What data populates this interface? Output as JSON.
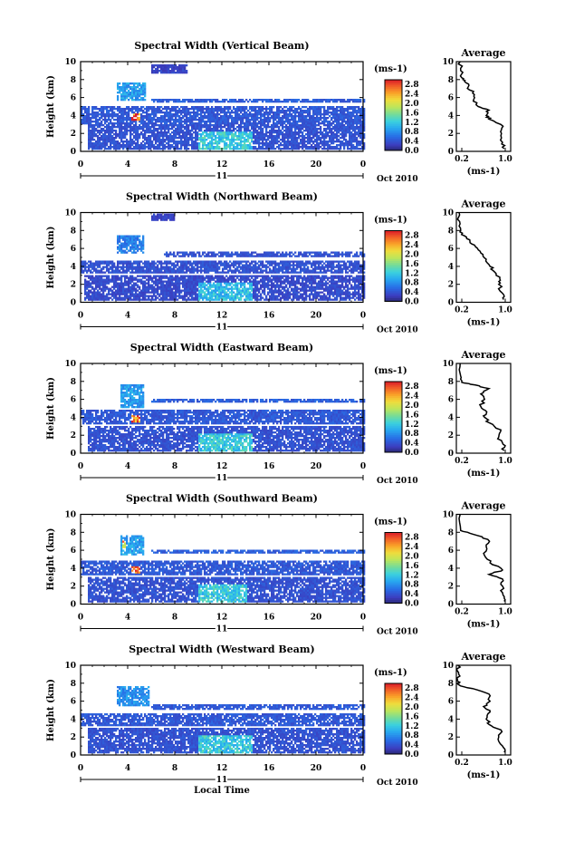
{
  "chart_data": [
    {
      "type": "heatmap",
      "title": "Spectral Width (Vertical Beam)",
      "ylabel": "Height (km)",
      "ylim": [
        0,
        10
      ],
      "xlim": [
        0,
        24
      ],
      "x_ticks": [
        "0",
        "4",
        "8",
        "12",
        "16",
        "20",
        "0"
      ],
      "y_ticks": [
        "0",
        "2",
        "4",
        "6",
        "8",
        "10"
      ],
      "date_marker": "11",
      "date_label": "Oct 2010",
      "colorbar": {
        "unit": "(ms-1)",
        "range": [
          0,
          3
        ],
        "ticks": [
          "2.8",
          "2.4",
          "2.0",
          "1.6",
          "1.2",
          "0.8",
          "0.4",
          "0.0"
        ]
      },
      "average_profile": {
        "title": "Average",
        "xlabel": "(ms-1)",
        "x_ticks": [
          "0.2",
          "1.0"
        ],
        "xlim": [
          0.1,
          1.1
        ],
        "y_ticks": [
          "0",
          "2",
          "4",
          "6",
          "8",
          "10"
        ],
        "points": [
          [
            0.98,
            0.3
          ],
          [
            0.95,
            1.0
          ],
          [
            0.93,
            2.0
          ],
          [
            0.96,
            2.8
          ],
          [
            0.7,
            3.6
          ],
          [
            0.65,
            4.0
          ],
          [
            0.7,
            4.6
          ],
          [
            0.5,
            5.0
          ],
          [
            0.42,
            5.8
          ],
          [
            0.4,
            6.5
          ],
          [
            0.32,
            7.2
          ],
          [
            0.25,
            7.8
          ],
          [
            0.2,
            8.2
          ],
          [
            0.18,
            9.0
          ],
          [
            0.17,
            10.0
          ]
        ]
      },
      "echo_patches": [
        {
          "t0": 0.5,
          "t1": 24,
          "h0": 0.2,
          "h1": 2.9,
          "v": 0.4
        },
        {
          "t0": 0,
          "t1": 24,
          "h0": 3.0,
          "h1": 4.9,
          "v": 0.45
        },
        {
          "t0": 10,
          "t1": 14.5,
          "h0": 0.2,
          "h1": 2.2,
          "v": 1.2
        },
        {
          "t0": 3,
          "t1": 5.5,
          "h0": 5.5,
          "h1": 7.5,
          "v": 0.9
        },
        {
          "t0": 4.2,
          "t1": 5.0,
          "h0": 3.4,
          "h1": 4.1,
          "v": 2.8
        },
        {
          "t0": 6,
          "t1": 24,
          "h0": 5.3,
          "h1": 5.8,
          "v": 0.5
        },
        {
          "t0": 6,
          "t1": 9,
          "h0": 8.5,
          "h1": 9.5,
          "v": 0.3
        }
      ]
    },
    {
      "type": "heatmap",
      "title": "Spectral Width (Northward Beam)",
      "ylabel": "Height (km)",
      "ylim": [
        0,
        10
      ],
      "xlim": [
        0,
        24
      ],
      "x_ticks": [
        "0",
        "4",
        "8",
        "12",
        "16",
        "20",
        "0"
      ],
      "y_ticks": [
        "0",
        "2",
        "4",
        "6",
        "8",
        "10"
      ],
      "date_marker": "11",
      "date_label": "Oct 2010",
      "colorbar": {
        "unit": "(ms-1)",
        "range": [
          0,
          3
        ],
        "ticks": [
          "2.8",
          "2.4",
          "2.0",
          "1.6",
          "1.2",
          "0.8",
          "0.4",
          "0.0"
        ]
      },
      "average_profile": {
        "title": "Average",
        "xlabel": "(ms-1)",
        "x_ticks": [
          "0.2",
          "1.0"
        ],
        "xlim": [
          0.1,
          1.1
        ],
        "y_ticks": [
          "0",
          "2",
          "4",
          "6",
          "8",
          "10"
        ],
        "points": [
          [
            0.97,
            0.3
          ],
          [
            0.95,
            1.0
          ],
          [
            0.88,
            2.0
          ],
          [
            0.9,
            2.6
          ],
          [
            0.8,
            3.4
          ],
          [
            0.72,
            4.0
          ],
          [
            0.65,
            4.8
          ],
          [
            0.55,
            5.5
          ],
          [
            0.45,
            6.2
          ],
          [
            0.35,
            6.8
          ],
          [
            0.25,
            7.4
          ],
          [
            0.18,
            8.0
          ],
          [
            0.16,
            9.0
          ],
          [
            0.15,
            10.0
          ]
        ]
      },
      "echo_patches": [
        {
          "t0": 0.3,
          "t1": 24,
          "h0": 0.2,
          "h1": 3.0,
          "v": 0.35
        },
        {
          "t0": 0,
          "t1": 24,
          "h0": 3.1,
          "h1": 4.6,
          "v": 0.4
        },
        {
          "t0": 10,
          "t1": 14.5,
          "h0": 0.2,
          "h1": 2.2,
          "v": 1.1
        },
        {
          "t0": 3,
          "t1": 5.3,
          "h0": 5.3,
          "h1": 7.3,
          "v": 0.7
        },
        {
          "t0": 7,
          "t1": 24,
          "h0": 5.0,
          "h1": 5.5,
          "v": 0.4
        },
        {
          "t0": 6,
          "t1": 8,
          "h0": 9.0,
          "h1": 9.7,
          "v": 0.3
        }
      ]
    },
    {
      "type": "heatmap",
      "title": "Spectral Width (Eastward Beam)",
      "ylabel": "Height (km)",
      "ylim": [
        0,
        10
      ],
      "xlim": [
        0,
        24
      ],
      "x_ticks": [
        "0",
        "4",
        "8",
        "12",
        "16",
        "20",
        "0"
      ],
      "y_ticks": [
        "0",
        "2",
        "4",
        "6",
        "8",
        "10"
      ],
      "date_marker": "11",
      "date_label": "Oct 2010",
      "colorbar": {
        "unit": "(ms-1)",
        "range": [
          0,
          3
        ],
        "ticks": [
          "2.8",
          "2.4",
          "2.0",
          "1.6",
          "1.2",
          "0.8",
          "0.4",
          "0.0"
        ]
      },
      "average_profile": {
        "title": "Average",
        "xlabel": "(ms-1)",
        "x_ticks": [
          "0.2",
          "1.0"
        ],
        "xlim": [
          0.1,
          1.1
        ],
        "y_ticks": [
          "0",
          "2",
          "4",
          "6",
          "8",
          "10"
        ],
        "points": [
          [
            0.98,
            0.3
          ],
          [
            0.96,
            1.0
          ],
          [
            0.88,
            1.8
          ],
          [
            0.92,
            2.6
          ],
          [
            0.7,
            3.4
          ],
          [
            0.62,
            4.0
          ],
          [
            0.66,
            4.6
          ],
          [
            0.55,
            5.2
          ],
          [
            0.62,
            6.0
          ],
          [
            0.55,
            6.6
          ],
          [
            0.7,
            7.2
          ],
          [
            0.45,
            7.6
          ],
          [
            0.2,
            7.9
          ],
          [
            0.18,
            8.6
          ],
          [
            0.17,
            10.0
          ]
        ]
      },
      "echo_patches": [
        {
          "t0": 0.5,
          "t1": 24,
          "h0": 0.2,
          "h1": 3.0,
          "v": 0.4
        },
        {
          "t0": 0,
          "t1": 24,
          "h0": 3.1,
          "h1": 4.8,
          "v": 0.45
        },
        {
          "t0": 10,
          "t1": 14.5,
          "h0": 0.2,
          "h1": 2.2,
          "v": 1.2
        },
        {
          "t0": 3.3,
          "t1": 5.3,
          "h0": 5.0,
          "h1": 7.6,
          "v": 0.9
        },
        {
          "t0": 4.2,
          "t1": 5.0,
          "h0": 3.4,
          "h1": 4.1,
          "v": 2.8
        },
        {
          "t0": 6,
          "t1": 24,
          "h0": 5.5,
          "h1": 6.0,
          "v": 0.5
        }
      ]
    },
    {
      "type": "heatmap",
      "title": "Spectral Width (Southward Beam)",
      "ylabel": "Height (km)",
      "ylim": [
        0,
        10
      ],
      "xlim": [
        0,
        24
      ],
      "x_ticks": [
        "0",
        "4",
        "8",
        "12",
        "16",
        "20",
        "0"
      ],
      "y_ticks": [
        "0",
        "2",
        "4",
        "6",
        "8",
        "10"
      ],
      "date_marker": "11",
      "date_label": "Oct 2010",
      "colorbar": {
        "unit": "(ms-1)",
        "range": [
          0,
          3
        ],
        "ticks": [
          "2.8",
          "2.4",
          "2.0",
          "1.6",
          "1.2",
          "0.8",
          "0.4",
          "0.0"
        ]
      },
      "average_profile": {
        "title": "Average",
        "xlabel": "(ms-1)",
        "x_ticks": [
          "0.2",
          "1.0"
        ],
        "xlim": [
          0.1,
          1.1
        ],
        "y_ticks": [
          "0",
          "2",
          "4",
          "6",
          "8",
          "10"
        ],
        "points": [
          [
            0.98,
            0.3
          ],
          [
            0.96,
            1.0
          ],
          [
            0.95,
            2.0
          ],
          [
            0.95,
            2.8
          ],
          [
            0.7,
            3.3
          ],
          [
            0.95,
            3.8
          ],
          [
            0.72,
            4.6
          ],
          [
            0.62,
            5.4
          ],
          [
            0.65,
            6.4
          ],
          [
            0.68,
            7.2
          ],
          [
            0.4,
            7.8
          ],
          [
            0.18,
            8.2
          ],
          [
            0.17,
            10.0
          ]
        ]
      },
      "echo_patches": [
        {
          "t0": 0.5,
          "t1": 24,
          "h0": 0.2,
          "h1": 3.0,
          "v": 0.4
        },
        {
          "t0": 0,
          "t1": 24,
          "h0": 3.1,
          "h1": 4.8,
          "v": 0.45
        },
        {
          "t0": 10,
          "t1": 14,
          "h0": 0.2,
          "h1": 2.2,
          "v": 1.2
        },
        {
          "t0": 3.3,
          "t1": 5.3,
          "h0": 5.3,
          "h1": 7.6,
          "v": 0.9
        },
        {
          "t0": 4.2,
          "t1": 5.0,
          "h0": 3.4,
          "h1": 4.1,
          "v": 2.9
        },
        {
          "t0": 3.4,
          "t1": 3.8,
          "h0": 6.0,
          "h1": 7.0,
          "v": 2.3
        },
        {
          "t0": 6,
          "t1": 24,
          "h0": 5.5,
          "h1": 6.0,
          "v": 0.5
        }
      ]
    },
    {
      "type": "heatmap",
      "title": "Spectral Width (Westward Beam)",
      "ylabel": "Height (km)",
      "xlabel": "Local Time",
      "ylim": [
        0,
        10
      ],
      "xlim": [
        0,
        24
      ],
      "x_ticks": [
        "0",
        "4",
        "8",
        "12",
        "16",
        "20",
        "0"
      ],
      "y_ticks": [
        "0",
        "2",
        "4",
        "6",
        "8",
        "10"
      ],
      "date_marker": "11",
      "date_label": "Oct 2010",
      "colorbar": {
        "unit": "(ms-1)",
        "range": [
          0,
          3
        ],
        "ticks": [
          "2.8",
          "2.4",
          "2.0",
          "1.6",
          "1.2",
          "0.8",
          "0.4",
          "0.0"
        ]
      },
      "average_profile": {
        "title": "Average",
        "xlabel": "(ms-1)",
        "x_ticks": [
          "0.2",
          "1.0"
        ],
        "xlim": [
          0.1,
          1.1
        ],
        "y_ticks": [
          "0",
          "2",
          "4",
          "6",
          "8",
          "10"
        ],
        "points": [
          [
            0.98,
            0.3
          ],
          [
            0.95,
            1.0
          ],
          [
            0.88,
            2.0
          ],
          [
            0.92,
            2.8
          ],
          [
            0.7,
            3.4
          ],
          [
            0.65,
            4.0
          ],
          [
            0.72,
            4.8
          ],
          [
            0.6,
            5.4
          ],
          [
            0.72,
            6.0
          ],
          [
            0.7,
            6.8
          ],
          [
            0.4,
            7.4
          ],
          [
            0.15,
            7.8
          ],
          [
            0.12,
            8.4
          ],
          [
            0.14,
            9.2
          ],
          [
            0.13,
            10.0
          ]
        ]
      },
      "echo_patches": [
        {
          "t0": 0.5,
          "t1": 24,
          "h0": 0.2,
          "h1": 3.0,
          "v": 0.4
        },
        {
          "t0": 0,
          "t1": 24,
          "h0": 3.1,
          "h1": 4.6,
          "v": 0.45
        },
        {
          "t0": 10,
          "t1": 14.5,
          "h0": 0.2,
          "h1": 2.2,
          "v": 1.2
        },
        {
          "t0": 3,
          "t1": 5.8,
          "h0": 5.3,
          "h1": 7.5,
          "v": 0.8
        },
        {
          "t0": 6,
          "t1": 24,
          "h0": 5.0,
          "h1": 5.6,
          "v": 0.45
        }
      ]
    }
  ]
}
